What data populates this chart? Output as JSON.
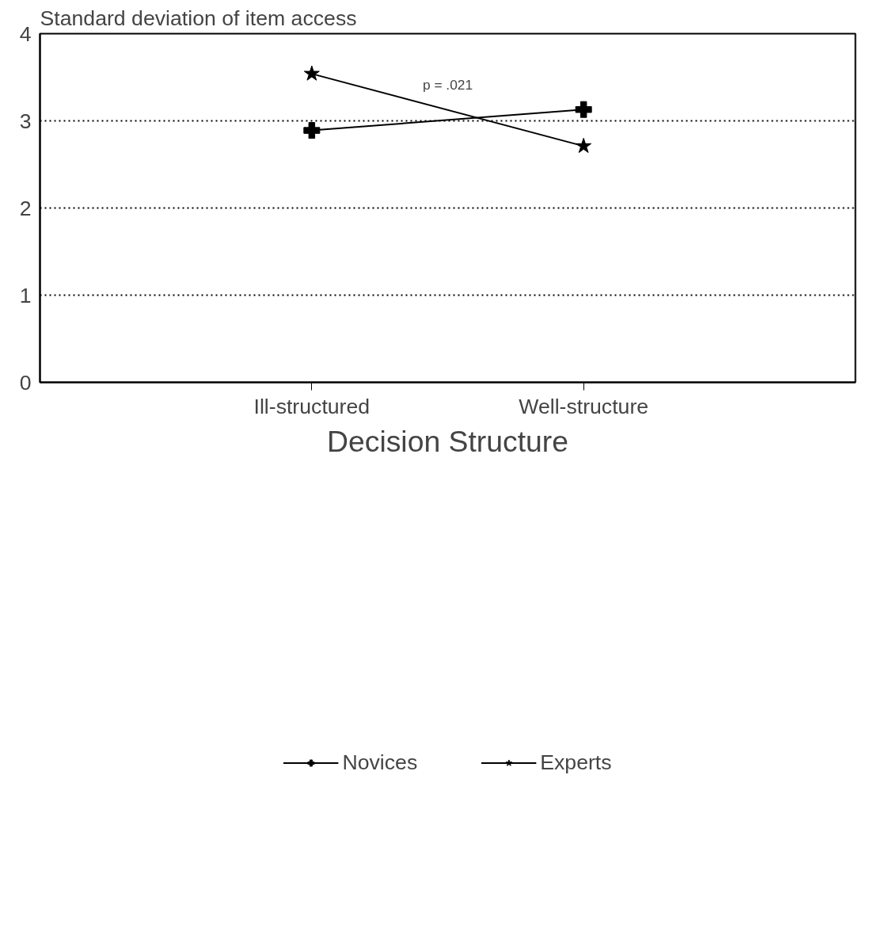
{
  "chart_data": {
    "type": "line",
    "ylabel": "Standard deviation of item access",
    "xlabel": "Decision Structure",
    "categories": [
      "Ill-structured",
      "Well-structure"
    ],
    "series": [
      {
        "name": "Novices",
        "color": "#000000",
        "values": [
          2.89,
          3.13
        ],
        "marker": "cross"
      },
      {
        "name": "Experts",
        "color": "#000000",
        "values": [
          3.54,
          2.71
        ],
        "marker": "star"
      }
    ],
    "ylim": [
      0,
      4
    ],
    "yticks": [
      0,
      1,
      2,
      3,
      4
    ],
    "grid": "y",
    "legend": "bottom",
    "line_style": "solid",
    "annotations": [
      "p = .021"
    ]
  }
}
